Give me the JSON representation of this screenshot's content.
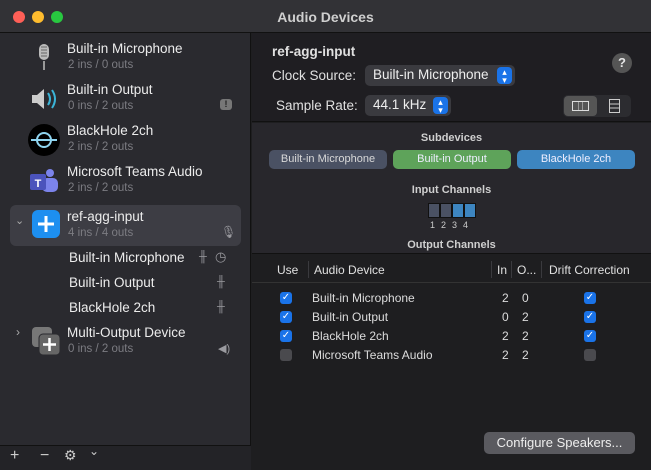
{
  "window": {
    "title": "Audio Devices"
  },
  "sidebar": {
    "devices": [
      {
        "name": "Built-in Microphone",
        "io": "2 ins / 0 outs",
        "icon": "microphone-icon"
      },
      {
        "name": "Built-in Output",
        "io": "0 ins / 2 outs",
        "icon": "speaker-icon",
        "badge": "!"
      },
      {
        "name": "BlackHole 2ch",
        "io": "2 ins / 2 outs",
        "icon": "blackhole-icon"
      },
      {
        "name": "Microsoft Teams Audio",
        "io": "2 ins / 2 outs",
        "icon": "teams-icon"
      },
      {
        "name": "ref-agg-input",
        "io": "4 ins / 4 outs",
        "icon": "aggregate-device-icon",
        "expanded": true,
        "selected": true,
        "subdevices": [
          "Built-in Microphone",
          "Built-in Output",
          "BlackHole 2ch"
        ]
      },
      {
        "name": "Multi-Output Device",
        "io": "0 ins / 2 outs",
        "icon": "multi-output-icon",
        "expanded": false
      }
    ],
    "bottom": {
      "add": "+",
      "remove": "−",
      "gear": "⚙",
      "chevron": "⌄"
    }
  },
  "detail": {
    "name": "ref-agg-input",
    "clock_label": "Clock Source:",
    "clock_value": "Built-in Microphone",
    "rate_label": "Sample Rate:",
    "rate_value": "44.1 kHz",
    "help": "?"
  },
  "subdevices": {
    "title": "Subdevices",
    "items": [
      {
        "name": "Built-in Microphone",
        "color": "#4a5163"
      },
      {
        "name": "Built-in Output",
        "color": "#5ea35a"
      },
      {
        "name": "BlackHole 2ch",
        "color": "#3d85c0"
      }
    ],
    "input_title": "Input Channels",
    "channels": [
      "1",
      "2",
      "3",
      "4"
    ],
    "output_title": "Output Channels"
  },
  "table": {
    "headers": [
      "Use",
      "Audio Device",
      "In",
      "O...",
      "Drift Correction"
    ],
    "rows": [
      {
        "use": true,
        "device": "Built-in Microphone",
        "in": "2",
        "out": "0",
        "drift": true
      },
      {
        "use": true,
        "device": "Built-in Output",
        "in": "0",
        "out": "2",
        "drift": true
      },
      {
        "use": true,
        "device": "BlackHole 2ch",
        "in": "2",
        "out": "2",
        "drift": true
      },
      {
        "use": false,
        "device": "Microsoft Teams Audio",
        "in": "2",
        "out": "2",
        "drift": false
      }
    ]
  },
  "configure_label": "Configure Speakers..."
}
